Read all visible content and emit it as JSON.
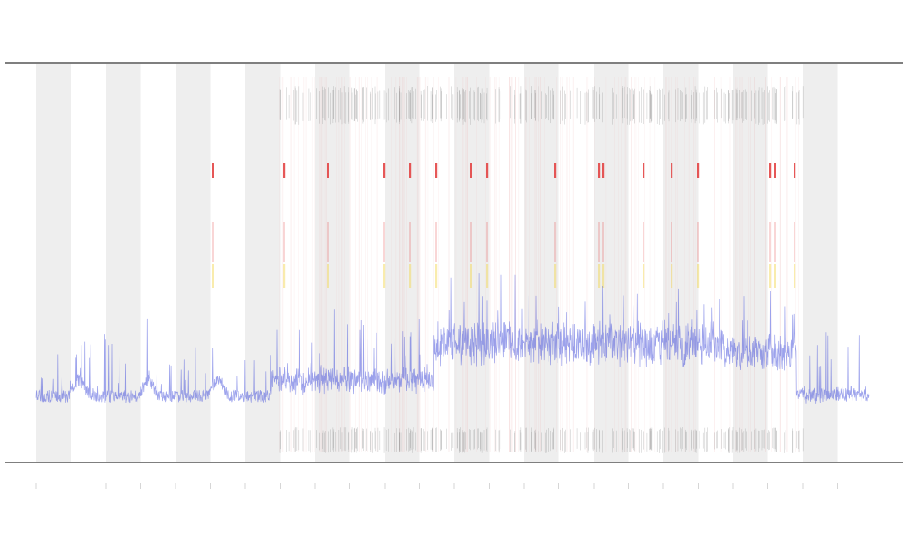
{
  "chart_data": {
    "type": "line",
    "title": "",
    "xlabel": "",
    "ylabel": "",
    "grid": false,
    "legend": "none",
    "shaded_bands": 12,
    "series": [
      {
        "name": "",
        "color": "#4a55dd"
      }
    ],
    "threshold_colors": {
      "high": "#e23a3a",
      "medium": "#f2d44a"
    },
    "band_color": "#eeeeee",
    "event_marker_color": "#888888",
    "axis_color": "#555555"
  }
}
